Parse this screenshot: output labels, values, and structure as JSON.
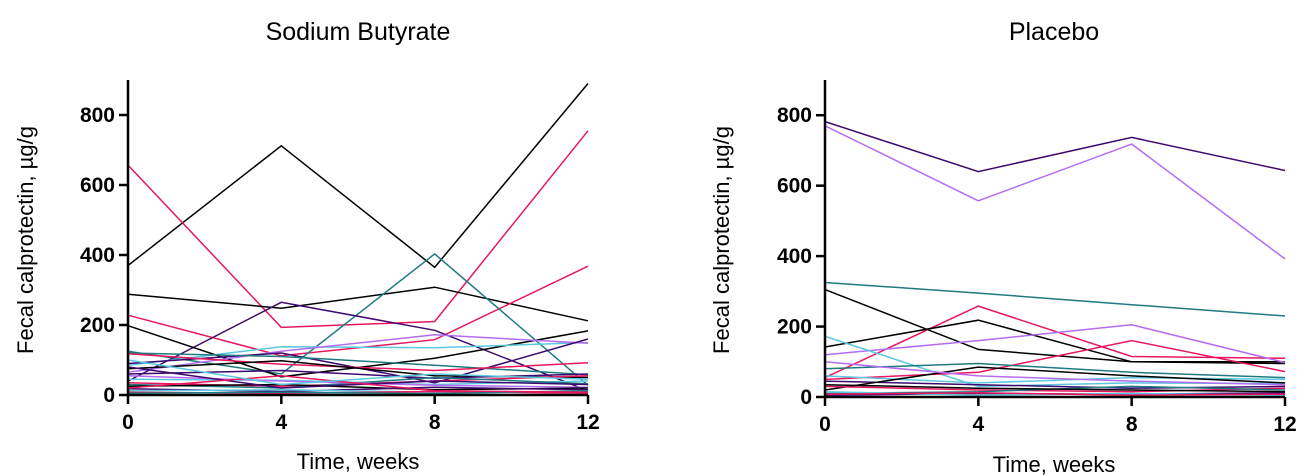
{
  "chart_data": [
    {
      "type": "line",
      "title": "Sodium Butyrate",
      "xlabel": "Time, weeks",
      "ylabel": "Fecal calprotectin, µg/g",
      "x": [
        0,
        4,
        8,
        12
      ],
      "xticks": [
        "0",
        "4",
        "8",
        "12"
      ],
      "yticks": [
        "0",
        "200",
        "400",
        "600",
        "800"
      ],
      "xlim": [
        0,
        12
      ],
      "ylim": [
        0,
        900
      ],
      "grid": false,
      "series": [
        {
          "color": "#000000",
          "values": [
            370,
            712,
            365,
            890
          ]
        },
        {
          "color": "#E8175D",
          "values": [
            657,
            193,
            210,
            755
          ]
        },
        {
          "color": "#000000",
          "values": [
            288,
            248,
            308,
            212
          ]
        },
        {
          "color": "#E8175D",
          "values": [
            228,
            112,
            158,
            368
          ]
        },
        {
          "color": "#1F7A80",
          "values": [
            125,
            60,
            403,
            28
          ]
        },
        {
          "color": "#3D0A6E",
          "values": [
            40,
            265,
            185,
            12
          ]
        },
        {
          "color": "#000000",
          "values": [
            198,
            52,
            105,
            183
          ]
        },
        {
          "color": "#5BC8E0",
          "values": [
            85,
            138,
            135,
            150
          ]
        },
        {
          "color": "#B56CF0",
          "values": [
            65,
            125,
            172,
            148
          ]
        },
        {
          "color": "#3D0A6E",
          "values": [
            90,
            120,
            35,
            160
          ]
        },
        {
          "color": "#1F7A80",
          "values": [
            120,
            110,
            85,
            58
          ]
        },
        {
          "color": "#E8175D",
          "values": [
            118,
            88,
            70,
            92
          ]
        },
        {
          "color": "#000000",
          "values": [
            75,
            98,
            55,
            50
          ]
        },
        {
          "color": "#3D0A6E",
          "values": [
            60,
            70,
            48,
            60
          ]
        },
        {
          "color": "#5BC8E0",
          "values": [
            45,
            42,
            30,
            40
          ]
        },
        {
          "color": "#E8175D",
          "values": [
            35,
            25,
            40,
            55
          ]
        },
        {
          "color": "#1F7A80",
          "values": [
            30,
            20,
            50,
            32
          ]
        },
        {
          "color": "#B56CF0",
          "values": [
            55,
            40,
            28,
            22
          ]
        },
        {
          "color": "#000000",
          "values": [
            25,
            30,
            15,
            20
          ]
        },
        {
          "color": "#3D0A6E",
          "values": [
            18,
            10,
            22,
            15
          ]
        },
        {
          "color": "#5BC8E0",
          "values": [
            12,
            15,
            8,
            10
          ]
        },
        {
          "color": "#E8175D",
          "values": [
            8,
            5,
            10,
            5
          ]
        },
        {
          "color": "#1F7A80",
          "values": [
            5,
            8,
            4,
            12
          ]
        },
        {
          "color": "#3D0A6E",
          "values": [
            80,
            20,
            40,
            30
          ]
        },
        {
          "color": "#E8175D",
          "values": [
            20,
            55,
            12,
            8
          ]
        },
        {
          "color": "#5BC8E0",
          "values": [
            100,
            30,
            60,
            45
          ]
        }
      ]
    },
    {
      "type": "line",
      "title": "Placebo",
      "xlabel": "Time, weeks",
      "ylabel": "Fecal calprotectin, µg/g",
      "x": [
        0,
        4,
        8,
        12
      ],
      "xticks": [
        "0",
        "4",
        "8",
        "12"
      ],
      "yticks": [
        "0",
        "200",
        "400",
        "600",
        "800"
      ],
      "xlim": [
        0,
        12
      ],
      "ylim": [
        0,
        900
      ],
      "grid": false,
      "series": [
        {
          "color": "#3D0A6E",
          "values": [
            782,
            640,
            737,
            643
          ]
        },
        {
          "color": "#B56CF0",
          "values": [
            770,
            557,
            718,
            392
          ]
        },
        {
          "color": "#1F7A80",
          "values": [
            325,
            295,
            262,
            230
          ]
        },
        {
          "color": "#000000",
          "values": [
            305,
            135,
            100,
            100
          ]
        },
        {
          "color": "#E8175D",
          "values": [
            55,
            258,
            115,
            110
          ]
        },
        {
          "color": "#000000",
          "values": [
            142,
            218,
            100,
            95
          ]
        },
        {
          "color": "#B56CF0",
          "values": [
            120,
            160,
            205,
            98
          ]
        },
        {
          "color": "#5BC8E0",
          "values": [
            172,
            30,
            40,
            38
          ]
        },
        {
          "color": "#E8175D",
          "values": [
            50,
            70,
            160,
            72
          ]
        },
        {
          "color": "#1F7A80",
          "values": [
            80,
            95,
            70,
            55
          ]
        },
        {
          "color": "#3D0A6E",
          "values": [
            45,
            35,
            25,
            30
          ]
        },
        {
          "color": "#5BC8E0",
          "values": [
            60,
            40,
            55,
            50
          ]
        },
        {
          "color": "#000000",
          "values": [
            20,
            85,
            60,
            40
          ]
        },
        {
          "color": "#E8175D",
          "values": [
            30,
            20,
            15,
            25
          ]
        },
        {
          "color": "#B56CF0",
          "values": [
            100,
            60,
            45,
            35
          ]
        },
        {
          "color": "#1F7A80",
          "values": [
            10,
            15,
            30,
            20
          ]
        },
        {
          "color": "#3D0A6E",
          "values": [
            5,
            10,
            8,
            12
          ]
        },
        {
          "color": "#5BC8E0",
          "values": [
            15,
            5,
            10,
            5
          ]
        },
        {
          "color": "#E8175D",
          "values": [
            8,
            12,
            5,
            8
          ]
        },
        {
          "color": "#000000",
          "values": [
            35,
            25,
            20,
            15
          ]
        }
      ]
    }
  ]
}
